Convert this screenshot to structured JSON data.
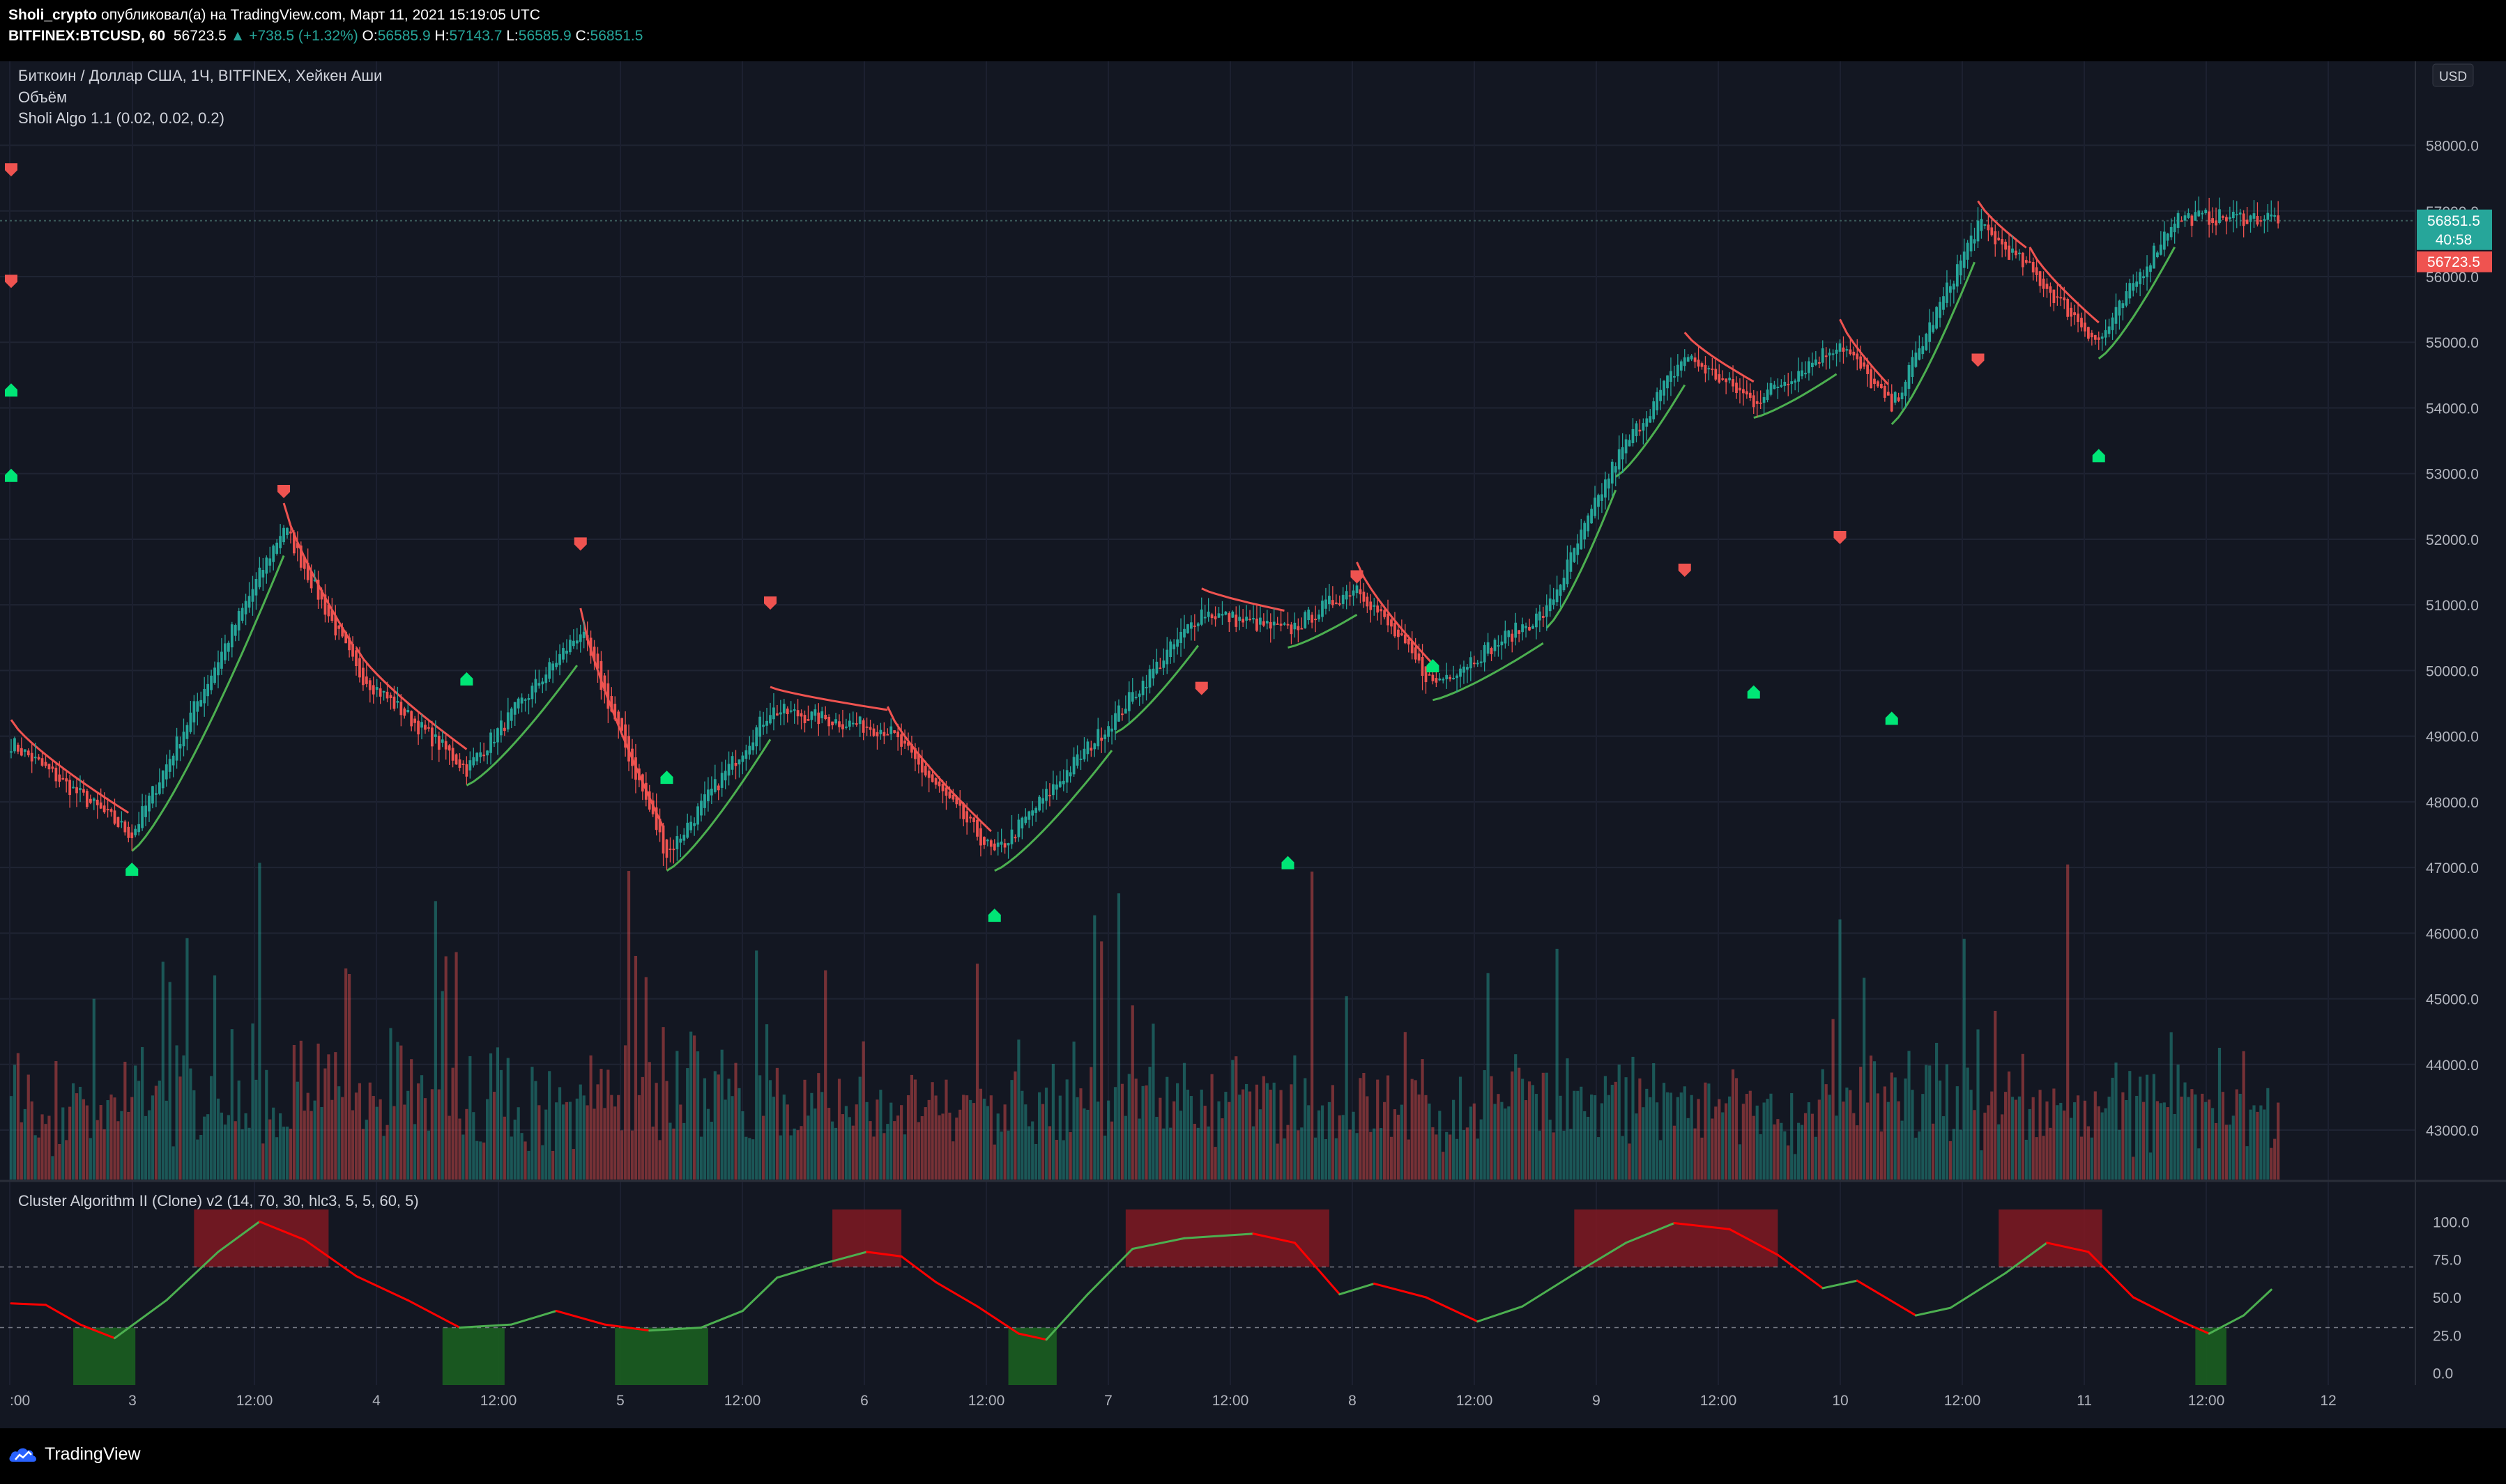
{
  "header": {
    "author": "Sholi_crypto",
    "published_text": " опубликовал(а) на TradingView.com, Март 11, 2021 15:19:05 UTC",
    "symbol": "BITFINEX:BTCUSD, 60",
    "price": "56723.5",
    "change": "▲ +738.5 (+1.32%)",
    "o_label": "O:",
    "o_value": "56585.9",
    "h_label": "H:",
    "h_value": "57143.7",
    "l_label": "L:",
    "l_value": "56585.9",
    "c_label": "C:",
    "c_value": "56851.5"
  },
  "legend": {
    "title": "Биткоин / Доллар США, 1Ч, BITFINEX, Хейкен Аши",
    "volume": "Объём",
    "algo": "Sholi Algo 1.1 (0.02, 0.02, 0.2)",
    "osc": "Cluster Algorithm II (Clone) v2 (14, 70, 30, hlc3, 5, 5, 60, 5)"
  },
  "price_scale": {
    "currency": "USD",
    "ticks": [
      "58000.0",
      "57000.0",
      "56000.0",
      "55000.0",
      "54000.0",
      "53000.0",
      "52000.0",
      "51000.0",
      "50000.0",
      "49000.0",
      "48000.0",
      "47000.0",
      "46000.0",
      "45000.0",
      "44000.0",
      "43000.0"
    ],
    "last_label": "56851.5",
    "countdown": "40:58",
    "prev_label": "56723.5"
  },
  "osc_scale": {
    "ticks": [
      "100.0",
      "75.0",
      "50.0",
      "25.0",
      "0.0"
    ]
  },
  "time_axis": {
    "labels": [
      ":00",
      "3",
      "12:00",
      "4",
      "12:00",
      "5",
      "12:00",
      "6",
      "12:00",
      "7",
      "12:00",
      "8",
      "12:00",
      "9",
      "12:00",
      "10",
      "12:00",
      "11",
      "12:00",
      "12"
    ]
  },
  "colors": {
    "bg": "#131722",
    "up": "#26a69a",
    "down": "#ef5350",
    "buy": "#00e676",
    "sar_up": "#4caf50",
    "osc_red": "#ff0000",
    "zone_red": "#801922",
    "zone_green": "#1b5e20"
  },
  "chart_data": {
    "type": "candlestick",
    "x": "hourly bars, 2021-03-02 to 2021-03-11",
    "ylim": [
      42300,
      58600
    ],
    "key_points": [
      {
        "bar": 0,
        "y": 48900
      },
      {
        "bar": 35,
        "y": 47500
      },
      {
        "bar": 79,
        "y": 52200
      },
      {
        "bar": 100,
        "y": 50000
      },
      {
        "bar": 132,
        "y": 48500
      },
      {
        "bar": 165,
        "y": 50600
      },
      {
        "bar": 190,
        "y": 47200
      },
      {
        "bar": 220,
        "y": 49400
      },
      {
        "bar": 254,
        "y": 49100
      },
      {
        "bar": 285,
        "y": 47200
      },
      {
        "bar": 320,
        "y": 49300
      },
      {
        "bar": 345,
        "y": 50900
      },
      {
        "bar": 370,
        "y": 50600
      },
      {
        "bar": 390,
        "y": 51300
      },
      {
        "bar": 412,
        "y": 49800
      },
      {
        "bar": 445,
        "y": 50900
      },
      {
        "bar": 465,
        "y": 53200
      },
      {
        "bar": 485,
        "y": 54800
      },
      {
        "bar": 505,
        "y": 54100
      },
      {
        "bar": 530,
        "y": 55000
      },
      {
        "bar": 545,
        "y": 54000
      },
      {
        "bar": 570,
        "y": 56800
      },
      {
        "bar": 585,
        "y": 56100
      },
      {
        "bar": 605,
        "y": 55000
      },
      {
        "bar": 627,
        "y": 56900
      }
    ],
    "signals": [
      {
        "type": "sell",
        "price": 52700
      },
      {
        "type": "sell",
        "price": 51900
      },
      {
        "type": "sell",
        "price": 51000
      },
      {
        "type": "sell",
        "price": 49700
      },
      {
        "type": "sell",
        "price": 51400
      },
      {
        "type": "sell",
        "price": 51500
      },
      {
        "type": "sell",
        "price": 52000
      },
      {
        "type": "sell",
        "price": 54700
      },
      {
        "type": "sell",
        "price": 55900
      },
      {
        "type": "sell",
        "price": 57600
      },
      {
        "type": "buy",
        "price": 47000
      },
      {
        "type": "buy",
        "price": 49900
      },
      {
        "type": "buy",
        "price": 48400
      },
      {
        "type": "buy",
        "price": 46300
      },
      {
        "type": "buy",
        "price": 47100
      },
      {
        "type": "buy",
        "price": 50100
      },
      {
        "type": "buy",
        "price": 49700
      },
      {
        "type": "buy",
        "price": 49300
      },
      {
        "type": "buy",
        "price": 53300
      },
      {
        "type": "buy",
        "price": 53000
      },
      {
        "type": "buy",
        "price": 54300
      }
    ],
    "oscillator": {
      "name": "Cluster Algorithm II (Clone) v2",
      "ylim": [
        -8,
        108
      ],
      "levels": [
        70,
        30
      ],
      "points": [
        {
          "bar": 0,
          "y": 46
        },
        {
          "bar": 10,
          "y": 45
        },
        {
          "bar": 20,
          "y": 32
        },
        {
          "bar": 30,
          "y": 23
        },
        {
          "bar": 45,
          "y": 48
        },
        {
          "bar": 60,
          "y": 80
        },
        {
          "bar": 72,
          "y": 100
        },
        {
          "bar": 85,
          "y": 88
        },
        {
          "bar": 100,
          "y": 64
        },
        {
          "bar": 115,
          "y": 48
        },
        {
          "bar": 130,
          "y": 30
        },
        {
          "bar": 145,
          "y": 32
        },
        {
          "bar": 158,
          "y": 41
        },
        {
          "bar": 172,
          "y": 32
        },
        {
          "bar": 185,
          "y": 28
        },
        {
          "bar": 200,
          "y": 30
        },
        {
          "bar": 212,
          "y": 41
        },
        {
          "bar": 222,
          "y": 63
        },
        {
          "bar": 235,
          "y": 72
        },
        {
          "bar": 248,
          "y": 80
        },
        {
          "bar": 258,
          "y": 77
        },
        {
          "bar": 268,
          "y": 60
        },
        {
          "bar": 280,
          "y": 44
        },
        {
          "bar": 292,
          "y": 26
        },
        {
          "bar": 300,
          "y": 22
        },
        {
          "bar": 312,
          "y": 52
        },
        {
          "bar": 325,
          "y": 82
        },
        {
          "bar": 340,
          "y": 89
        },
        {
          "bar": 360,
          "y": 92
        },
        {
          "bar": 372,
          "y": 86
        },
        {
          "bar": 385,
          "y": 52
        },
        {
          "bar": 395,
          "y": 59
        },
        {
          "bar": 410,
          "y": 50
        },
        {
          "bar": 425,
          "y": 34
        },
        {
          "bar": 438,
          "y": 44
        },
        {
          "bar": 452,
          "y": 64
        },
        {
          "bar": 468,
          "y": 86
        },
        {
          "bar": 482,
          "y": 99
        },
        {
          "bar": 498,
          "y": 95
        },
        {
          "bar": 512,
          "y": 78
        },
        {
          "bar": 525,
          "y": 56
        },
        {
          "bar": 535,
          "y": 61
        },
        {
          "bar": 552,
          "y": 38
        },
        {
          "bar": 562,
          "y": 43
        },
        {
          "bar": 578,
          "y": 66
        },
        {
          "bar": 590,
          "y": 86
        },
        {
          "bar": 602,
          "y": 80
        },
        {
          "bar": 615,
          "y": 50
        },
        {
          "bar": 628,
          "y": 35
        },
        {
          "bar": 637,
          "y": 26
        },
        {
          "bar": 647,
          "y": 38
        },
        {
          "bar": 655,
          "y": 55
        }
      ],
      "zones": [
        {
          "type": "overbought",
          "bar_start": 53,
          "bar_end": 92
        },
        {
          "type": "overbought",
          "bar_start": 238,
          "bar_end": 258
        },
        {
          "type": "overbought",
          "bar_start": 323,
          "bar_end": 382
        },
        {
          "type": "overbought",
          "bar_start": 453,
          "bar_end": 512
        },
        {
          "type": "overbought",
          "bar_start": 576,
          "bar_end": 606
        },
        {
          "type": "oversold",
          "bar_start": 18,
          "bar_end": 36
        },
        {
          "type": "oversold",
          "bar_start": 125,
          "bar_end": 143
        },
        {
          "type": "oversold",
          "bar_start": 175,
          "bar_end": 202
        },
        {
          "type": "oversold",
          "bar_start": 289,
          "bar_end": 303
        },
        {
          "type": "oversold",
          "bar_start": 633,
          "bar_end": 642
        }
      ]
    }
  }
}
